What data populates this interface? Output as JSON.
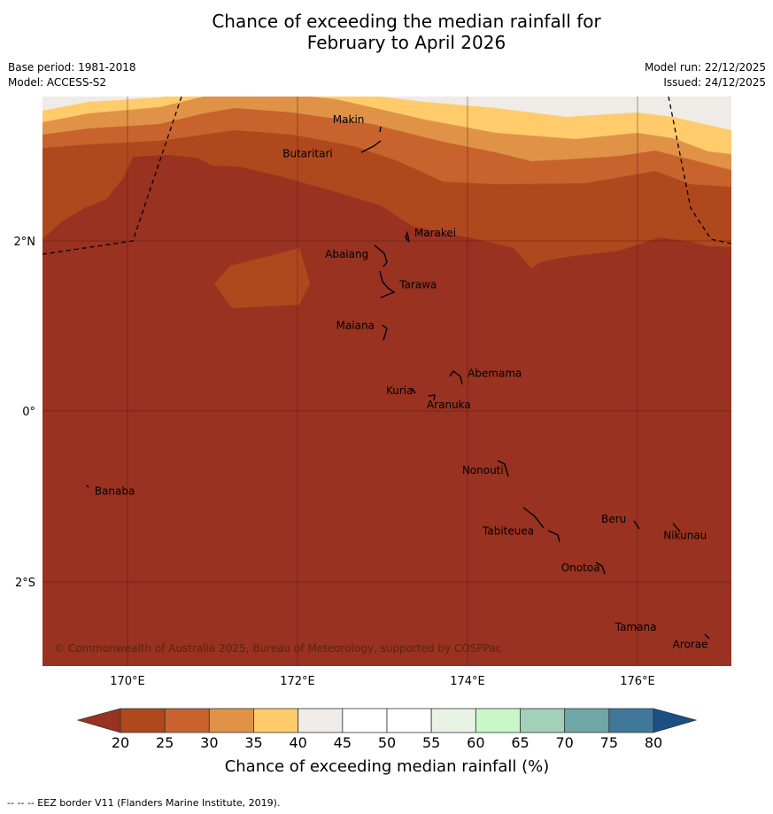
{
  "title": {
    "line1": "Chance of exceeding the median rainfall for",
    "line2": "February to April 2026"
  },
  "meta": {
    "base_period": "Base period: 1981-2018",
    "model": "Model: ACCESS-S2",
    "model_run": "Model run: 22/12/2025",
    "issued": "Issued: 24/12/2025"
  },
  "map": {
    "lat_labels": [
      "2°N",
      "0°",
      "2°S"
    ],
    "lon_labels": [
      "170°E",
      "172°E",
      "174°E",
      "176°E"
    ],
    "copyright": "© Commonwealth of Australia 2025, Bureau of Meteorology, supported by COSPPac",
    "places": [
      {
        "name": "Makin",
        "lon": 172.6,
        "lat": 3.38
      },
      {
        "name": "Butaritari",
        "lon": 172.12,
        "lat": 2.98
      },
      {
        "name": "Marakei",
        "lon": 173.62,
        "lat": 2.05
      },
      {
        "name": "Abaiang",
        "lon": 172.58,
        "lat": 1.8
      },
      {
        "name": "Tarawa",
        "lon": 173.42,
        "lat": 1.44
      },
      {
        "name": "Maiana",
        "lon": 172.68,
        "lat": 0.96
      },
      {
        "name": "Abemama",
        "lon": 174.32,
        "lat": 0.4
      },
      {
        "name": "Kuria",
        "lon": 173.2,
        "lat": 0.2
      },
      {
        "name": "Aranuka",
        "lon": 173.78,
        "lat": 0.03
      },
      {
        "name": "Nonouti",
        "lon": 174.18,
        "lat": -0.74
      },
      {
        "name": "Banaba",
        "lon": 169.85,
        "lat": -0.98
      },
      {
        "name": "Beru",
        "lon": 175.72,
        "lat": -1.31
      },
      {
        "name": "Tabiteuea",
        "lon": 174.48,
        "lat": -1.45
      },
      {
        "name": "Nikunau",
        "lon": 176.56,
        "lat": -1.5
      },
      {
        "name": "Onotoa",
        "lon": 175.33,
        "lat": -1.88
      },
      {
        "name": "Tamana",
        "lon": 175.98,
        "lat": -2.58
      },
      {
        "name": "Arorae",
        "lon": 176.62,
        "lat": -2.78
      }
    ]
  },
  "colorbar": {
    "ticks": [
      "20",
      "25",
      "30",
      "35",
      "40",
      "45",
      "50",
      "55",
      "60",
      "65",
      "70",
      "75",
      "80"
    ],
    "colors": [
      "#b0481e",
      "#c8632e",
      "#e09347",
      "#ffcb6b",
      "#efebe6",
      "#ffffff",
      "#ffffff",
      "#e8f3e6",
      "#c9f8c8",
      "#a1d1b9",
      "#70a6a6",
      "#3f7899"
    ],
    "under_color": "#993220",
    "over_color": "#1c4f85",
    "label": "Chance of exceeding median rainfall (%)"
  },
  "footnote": "--  --  -- EEZ border V11 (Flanders Marine Institute, 2019)."
}
